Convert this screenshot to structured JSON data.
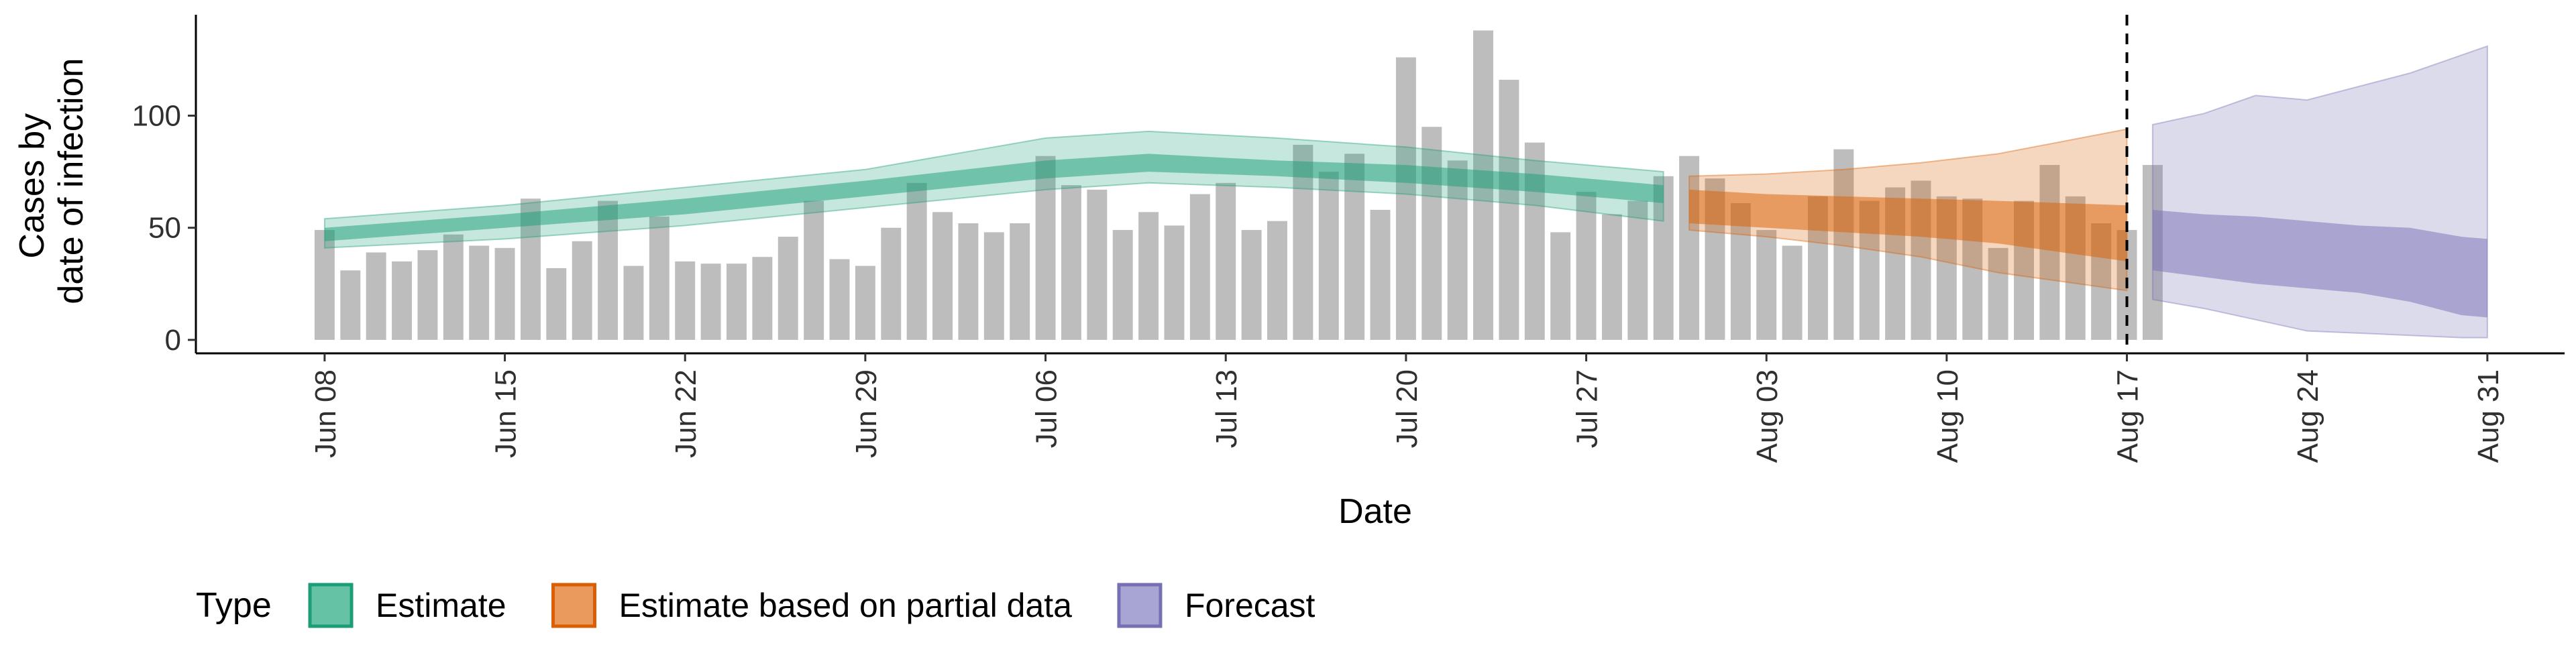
{
  "chart_data": {
    "type": "bar",
    "title": "",
    "xlabel": "Date",
    "ylabel": [
      "Cases by",
      "date of infection"
    ],
    "x_range": [
      "2020-06-03",
      "2020-09-03"
    ],
    "ylim": [
      -6,
      145
    ],
    "y_ticks": [
      0,
      50,
      100
    ],
    "x_ticks": [
      {
        "date": "2020-06-08",
        "label": "Jun 08"
      },
      {
        "date": "2020-06-15",
        "label": "Jun 15"
      },
      {
        "date": "2020-06-22",
        "label": "Jun 22"
      },
      {
        "date": "2020-06-29",
        "label": "Jun 29"
      },
      {
        "date": "2020-07-06",
        "label": "Jul 06"
      },
      {
        "date": "2020-07-13",
        "label": "Jul 13"
      },
      {
        "date": "2020-07-20",
        "label": "Jul 20"
      },
      {
        "date": "2020-07-27",
        "label": "Jul 27"
      },
      {
        "date": "2020-08-03",
        "label": "Aug 03"
      },
      {
        "date": "2020-08-10",
        "label": "Aug 10"
      },
      {
        "date": "2020-08-17",
        "label": "Aug 17"
      },
      {
        "date": "2020-08-24",
        "label": "Aug 24"
      },
      {
        "date": "2020-08-31",
        "label": "Aug 31"
      }
    ],
    "reported_cases": {
      "start_date": "2020-06-08",
      "color": "#bdbdbd",
      "values": [
        49,
        31,
        39,
        35,
        40,
        47,
        42,
        41,
        63,
        32,
        44,
        62,
        33,
        55,
        35,
        34,
        34,
        37,
        46,
        62,
        36,
        33,
        50,
        70,
        57,
        52,
        48,
        52,
        82,
        69,
        67,
        49,
        57,
        51,
        65,
        70,
        49,
        53,
        87,
        75,
        83,
        58,
        126,
        95,
        80,
        138,
        116,
        88,
        48,
        66,
        56,
        62,
        73,
        82,
        72,
        61,
        49,
        42,
        64,
        85,
        62,
        68,
        71,
        64,
        63,
        41,
        62,
        78,
        64,
        52,
        49,
        78
      ]
    },
    "forecast_cutoff": {
      "date": "2020-08-17",
      "line_style": "dashed"
    },
    "legend": {
      "title": "Type",
      "placement": "bottom-left",
      "entries": [
        {
          "label": "Estimate",
          "fill": "#66c2a5",
          "stroke": "#1b9e77"
        },
        {
          "label": "Estimate based on partial data",
          "fill": "#eb9a5d",
          "stroke": "#d95f02"
        },
        {
          "label": "Forecast",
          "fill": "#a9a5d3",
          "stroke": "#7570b3"
        }
      ]
    },
    "series": [
      {
        "type_index": 0,
        "color": "#1b9e77",
        "x": [
          "2020-06-08",
          "2020-06-15",
          "2020-06-22",
          "2020-06-29",
          "2020-07-06",
          "2020-07-10",
          "2020-07-15",
          "2020-07-20",
          "2020-07-25",
          "2020-07-30"
        ],
        "inner_band": [
          [
            44,
            50
          ],
          [
            50,
            56
          ],
          [
            56,
            63
          ],
          [
            64,
            71
          ],
          [
            72,
            80
          ],
          [
            75,
            83
          ],
          [
            73,
            80
          ],
          [
            70,
            78
          ],
          [
            66,
            74
          ],
          [
            61,
            69
          ]
        ],
        "outer_band": [
          [
            41,
            54
          ],
          [
            45,
            60
          ],
          [
            51,
            68
          ],
          [
            59,
            76
          ],
          [
            67,
            90
          ],
          [
            70,
            93
          ],
          [
            68,
            90
          ],
          [
            65,
            86
          ],
          [
            60,
            80
          ],
          [
            53,
            75
          ]
        ]
      },
      {
        "type_index": 1,
        "color": "#d95f02",
        "x": [
          "2020-07-31",
          "2020-08-03",
          "2020-08-06",
          "2020-08-09",
          "2020-08-12",
          "2020-08-17"
        ],
        "inner_band": [
          [
            52,
            67
          ],
          [
            50,
            65
          ],
          [
            48,
            64
          ],
          [
            46,
            63
          ],
          [
            43,
            62
          ],
          [
            35,
            60
          ]
        ],
        "outer_band": [
          [
            49,
            73
          ],
          [
            46,
            74
          ],
          [
            42,
            76
          ],
          [
            37,
            79
          ],
          [
            30,
            83
          ],
          [
            22,
            94
          ]
        ]
      },
      {
        "type_index": 2,
        "color": "#7570b3",
        "x": [
          "2020-08-18",
          "2020-08-20",
          "2020-08-22",
          "2020-08-24",
          "2020-08-26",
          "2020-08-28",
          "2020-08-30",
          "2020-08-31"
        ],
        "inner_band": [
          [
            31,
            58
          ],
          [
            28,
            56
          ],
          [
            25,
            55
          ],
          [
            23,
            53
          ],
          [
            21,
            51
          ],
          [
            17,
            50
          ],
          [
            11,
            46
          ],
          [
            10,
            45
          ]
        ],
        "outer_band": [
          [
            18,
            96
          ],
          [
            14,
            101
          ],
          [
            9,
            109
          ],
          [
            4,
            107
          ],
          [
            3,
            113
          ],
          [
            2,
            119
          ],
          [
            1,
            127
          ],
          [
            1,
            131
          ]
        ]
      }
    ]
  }
}
